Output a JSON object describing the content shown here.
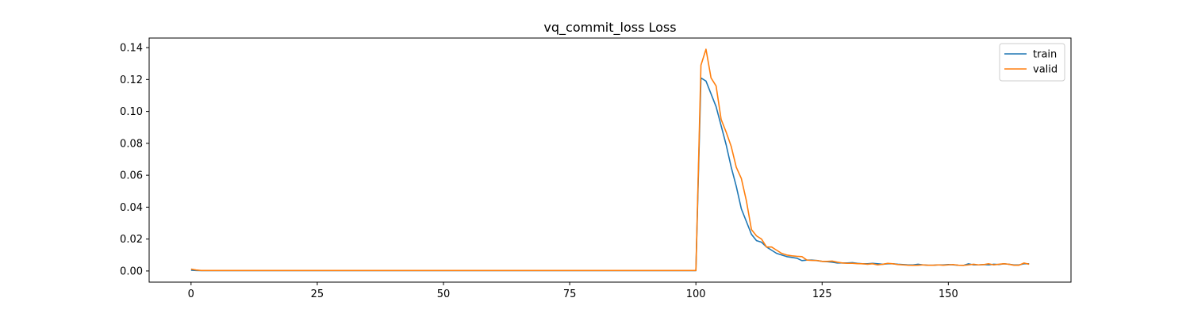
{
  "chart_data": {
    "type": "line",
    "title": "vq_commit_loss Loss",
    "xlabel": "",
    "ylabel": "",
    "xlim": [
      -8.3,
      174.3
    ],
    "ylim": [
      -0.007,
      0.146
    ],
    "xticks": [
      0,
      25,
      50,
      75,
      100,
      125,
      150
    ],
    "yticks": [
      0.0,
      0.02,
      0.04,
      0.06,
      0.08,
      0.1,
      0.12,
      0.14
    ],
    "ytick_labels": [
      "0.00",
      "0.02",
      "0.04",
      "0.06",
      "0.08",
      "0.10",
      "0.12",
      "0.14"
    ],
    "grid": false,
    "legend": "top-right",
    "series": [
      {
        "name": "train",
        "color": "#1f77b4",
        "x": [
          0,
          1,
          2,
          3,
          10,
          20,
          30,
          40,
          50,
          60,
          70,
          80,
          90,
          100,
          101,
          102,
          103,
          104,
          105,
          106,
          107,
          108,
          109,
          110,
          111,
          112,
          113,
          114,
          115,
          116,
          117,
          118,
          119,
          120,
          121,
          122,
          123,
          124,
          125,
          126,
          127,
          128,
          129,
          130,
          131,
          132,
          133,
          134,
          135,
          136,
          137,
          138,
          139,
          140,
          141,
          142,
          143,
          144,
          145,
          146,
          147,
          148,
          149,
          150,
          151,
          152,
          153,
          154,
          155,
          156,
          157,
          158,
          159,
          160,
          161,
          162,
          163,
          164,
          165,
          166
        ],
        "y": [
          0.0005,
          0.0003,
          0.0002,
          0.0002,
          0.0002,
          0.0002,
          0.0002,
          0.0002,
          0.0002,
          0.0002,
          0.0002,
          0.0002,
          0.0002,
          0.0002,
          0.121,
          0.119,
          0.111,
          0.103,
          0.091,
          0.079,
          0.065,
          0.053,
          0.039,
          0.031,
          0.023,
          0.019,
          0.018,
          0.015,
          0.013,
          0.011,
          0.01,
          0.009,
          0.0085,
          0.008,
          0.0065,
          0.0068,
          0.0068,
          0.0065,
          0.006,
          0.0058,
          0.0055,
          0.005,
          0.005,
          0.005,
          0.0052,
          0.0048,
          0.0045,
          0.0045,
          0.0048,
          0.0045,
          0.0042,
          0.0045,
          0.0045,
          0.0042,
          0.004,
          0.0038,
          0.0038,
          0.0042,
          0.0038,
          0.0036,
          0.0036,
          0.0038,
          0.0038,
          0.004,
          0.0038,
          0.0036,
          0.0035,
          0.0045,
          0.0038,
          0.0038,
          0.004,
          0.0038,
          0.0042,
          0.004,
          0.0045,
          0.0042,
          0.0038,
          0.0038,
          0.0045,
          0.0045
        ]
      },
      {
        "name": "valid",
        "color": "#ff7f0e",
        "x": [
          0,
          1,
          2,
          3,
          10,
          20,
          30,
          40,
          50,
          60,
          70,
          80,
          90,
          100,
          101,
          102,
          103,
          104,
          105,
          106,
          107,
          108,
          109,
          110,
          111,
          112,
          113,
          114,
          115,
          116,
          117,
          118,
          119,
          120,
          121,
          122,
          123,
          124,
          125,
          126,
          127,
          128,
          129,
          130,
          131,
          132,
          133,
          134,
          135,
          136,
          137,
          138,
          139,
          140,
          141,
          142,
          143,
          144,
          145,
          146,
          147,
          148,
          149,
          150,
          151,
          152,
          153,
          154,
          155,
          156,
          157,
          158,
          159,
          160,
          161,
          162,
          163,
          164,
          165,
          166
        ],
        "y": [
          0.0012,
          0.0006,
          0.0003,
          0.0003,
          0.0003,
          0.0003,
          0.0003,
          0.0003,
          0.0003,
          0.0003,
          0.0003,
          0.0003,
          0.0003,
          0.0003,
          0.129,
          0.139,
          0.121,
          0.116,
          0.095,
          0.087,
          0.078,
          0.065,
          0.058,
          0.044,
          0.026,
          0.022,
          0.02,
          0.015,
          0.015,
          0.013,
          0.011,
          0.01,
          0.0095,
          0.0092,
          0.009,
          0.0068,
          0.0066,
          0.0066,
          0.006,
          0.006,
          0.0062,
          0.0055,
          0.005,
          0.0048,
          0.0048,
          0.0046,
          0.0045,
          0.0042,
          0.0045,
          0.0038,
          0.0042,
          0.0048,
          0.0045,
          0.004,
          0.0038,
          0.0036,
          0.0035,
          0.0036,
          0.0038,
          0.0036,
          0.0036,
          0.0038,
          0.0036,
          0.0038,
          0.004,
          0.0036,
          0.0035,
          0.0038,
          0.0042,
          0.0038,
          0.004,
          0.0045,
          0.0038,
          0.0042,
          0.0045,
          0.0042,
          0.0036,
          0.0036,
          0.005,
          0.0042
        ]
      }
    ]
  }
}
